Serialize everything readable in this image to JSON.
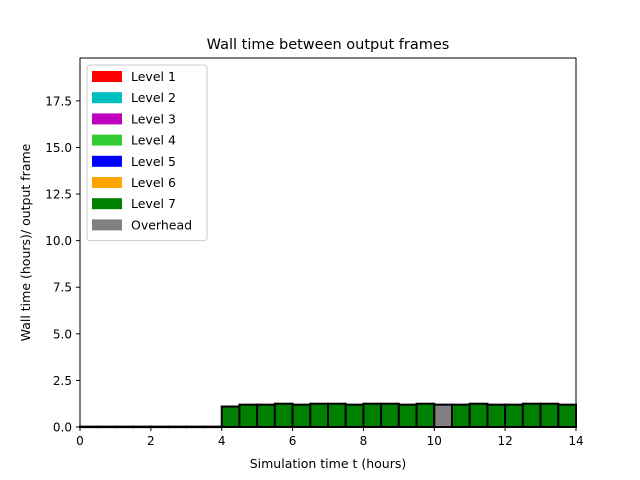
{
  "chart_data": {
    "type": "bar",
    "title": "Wall time between output frames",
    "xlabel": "Simulation time t (hours)",
    "ylabel": "Wall time (hours)/ output frame",
    "xlim": [
      0,
      14
    ],
    "ylim": [
      0,
      19.8
    ],
    "xticks": [
      0,
      2,
      4,
      6,
      8,
      10,
      12,
      14
    ],
    "xtick_labels": [
      "0",
      "2",
      "4",
      "6",
      "8",
      "10",
      "12",
      "14"
    ],
    "yticks": [
      0,
      2.5,
      5,
      7.5,
      10,
      12.5,
      15,
      17.5
    ],
    "ytick_labels": [
      "0.0",
      "2.5",
      "5.0",
      "7.5",
      "10.0",
      "12.5",
      "15.0",
      "17.5"
    ],
    "grid": false,
    "legend_position": "top-left",
    "legend": [
      {
        "label": "Level 1",
        "color": "#ff0000"
      },
      {
        "label": "Level 2",
        "color": "#00bfbf"
      },
      {
        "label": "Level 3",
        "color": "#bf00bf"
      },
      {
        "label": "Level 4",
        "color": "#32cd32"
      },
      {
        "label": "Level 5",
        "color": "#0000ff"
      },
      {
        "label": "Level 6",
        "color": "#ffa500"
      },
      {
        "label": "Level 7",
        "color": "#008000"
      },
      {
        "label": "Overhead",
        "color": "#808080"
      }
    ],
    "bar_width": 0.5,
    "bars": [
      {
        "x": 0.0,
        "value": 0.02,
        "category": "Level 7"
      },
      {
        "x": 0.5,
        "value": 0.02,
        "category": "Level 7"
      },
      {
        "x": 1.0,
        "value": 0.02,
        "category": "Level 7"
      },
      {
        "x": 1.5,
        "value": 0.02,
        "category": "Level 7"
      },
      {
        "x": 2.0,
        "value": 0.02,
        "category": "Level 7"
      },
      {
        "x": 2.5,
        "value": 0.02,
        "category": "Level 7"
      },
      {
        "x": 3.0,
        "value": 0.02,
        "category": "Level 7"
      },
      {
        "x": 3.5,
        "value": 0.02,
        "category": "Level 7"
      },
      {
        "x": 4.0,
        "value": 1.1,
        "category": "Level 7"
      },
      {
        "x": 4.5,
        "value": 1.2,
        "category": "Level 7"
      },
      {
        "x": 5.0,
        "value": 1.2,
        "category": "Level 7"
      },
      {
        "x": 5.5,
        "value": 1.25,
        "category": "Level 7"
      },
      {
        "x": 6.0,
        "value": 1.2,
        "category": "Level 7"
      },
      {
        "x": 6.5,
        "value": 1.25,
        "category": "Level 7"
      },
      {
        "x": 7.0,
        "value": 1.25,
        "category": "Level 7"
      },
      {
        "x": 7.5,
        "value": 1.2,
        "category": "Level 7"
      },
      {
        "x": 8.0,
        "value": 1.25,
        "category": "Level 7"
      },
      {
        "x": 8.5,
        "value": 1.25,
        "category": "Level 7"
      },
      {
        "x": 9.0,
        "value": 1.2,
        "category": "Level 7"
      },
      {
        "x": 9.5,
        "value": 1.25,
        "category": "Level 7"
      },
      {
        "x": 10.0,
        "value": 1.2,
        "category": "Overhead"
      },
      {
        "x": 10.5,
        "value": 1.2,
        "category": "Level 7"
      },
      {
        "x": 11.0,
        "value": 1.25,
        "category": "Level 7"
      },
      {
        "x": 11.5,
        "value": 1.2,
        "category": "Level 7"
      },
      {
        "x": 12.0,
        "value": 1.2,
        "category": "Level 7"
      },
      {
        "x": 12.5,
        "value": 1.25,
        "category": "Level 7"
      },
      {
        "x": 13.0,
        "value": 1.25,
        "category": "Level 7"
      },
      {
        "x": 13.5,
        "value": 1.2,
        "category": "Level 7"
      }
    ]
  }
}
